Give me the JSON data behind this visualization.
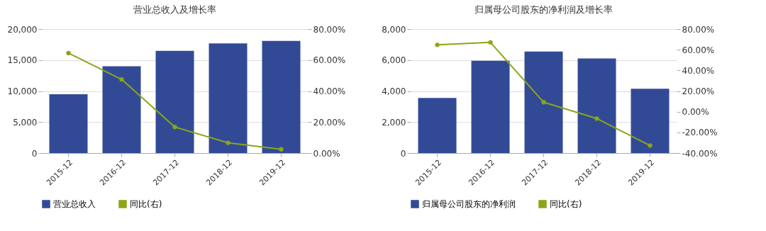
{
  "chart_data": [
    {
      "type": "bar",
      "title": "营业总收入及增长率",
      "categories": [
        "2015-12",
        "2016-12",
        "2017-12",
        "2018-12",
        "2019-12"
      ],
      "series": [
        {
          "name": "营业总收入",
          "color": "#324a96",
          "values": [
            9500,
            14000,
            16500,
            17700,
            18100
          ]
        },
        {
          "name": "同比(右)",
          "type": "line",
          "axis": "y2",
          "color": "#8ba617",
          "values": [
            64.5,
            47.5,
            16.8,
            6.6,
            2.4
          ]
        }
      ],
      "ylim": [
        0,
        20000
      ],
      "yticks": [
        0,
        {
          "value": 5000,
          "label": "5,000"
        },
        {
          "value": 10000,
          "label": "10,000"
        },
        {
          "value": 15000,
          "label": "15,000"
        },
        {
          "value": 20000,
          "label": "20,000"
        }
      ],
      "y2lim": [
        0,
        80
      ],
      "y2ticks": [
        {
          "value": 0,
          "label": "0.00%"
        },
        {
          "value": 20,
          "label": "20.00%"
        },
        {
          "value": 40,
          "label": "40.00%"
        },
        {
          "value": 60,
          "label": "60.00%"
        },
        {
          "value": 80,
          "label": "80.00%"
        }
      ],
      "grid": "y",
      "legend": "bottom",
      "marker": "circle"
    },
    {
      "type": "bar",
      "title": "归属母公司股东的净利润及增长率",
      "categories": [
        "2015-12",
        "2016-12",
        "2017-12",
        "2018-12",
        "2019-12"
      ],
      "series": [
        {
          "name": "归属母公司股东的净利润",
          "color": "#324a96",
          "values": [
            3550,
            5950,
            6550,
            6100,
            4150
          ]
        },
        {
          "name": "同比(右)",
          "type": "line",
          "axis": "y2",
          "color": "#8ba617",
          "values": [
            64.7,
            67.1,
            9.2,
            -6.6,
            -32.7
          ]
        }
      ],
      "ylim": [
        0,
        8000
      ],
      "yticks": [
        0,
        {
          "value": 2000,
          "label": "2,000"
        },
        {
          "value": 4000,
          "label": "4,000"
        },
        {
          "value": 6000,
          "label": "6,000"
        },
        {
          "value": 8000,
          "label": "8,000"
        }
      ],
      "y2lim": [
        -40,
        80
      ],
      "y2ticks": [
        {
          "value": -40,
          "label": "-40.00%"
        },
        {
          "value": -20,
          "label": "-20.00%"
        },
        {
          "value": 0,
          "label": "0.00%"
        },
        {
          "value": 20,
          "label": "20.00%"
        },
        {
          "value": 40,
          "label": "40.00%"
        },
        {
          "value": 60,
          "label": "60.00%"
        },
        {
          "value": 80,
          "label": "80.00%"
        }
      ],
      "grid": "y",
      "legend": "bottom",
      "marker": "circle"
    }
  ]
}
